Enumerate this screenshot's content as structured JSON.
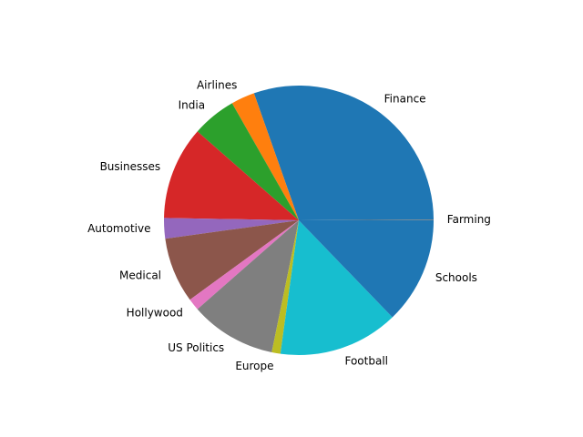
{
  "chart_data": {
    "type": "pie",
    "title": "",
    "start_angle_deg": 0,
    "direction": "counterclockwise",
    "slices": [
      {
        "label": "Farming",
        "value": 0.1,
        "color": "#7f7f7f"
      },
      {
        "label": "Finance",
        "value": 32.0,
        "color": "#1f77b4"
      },
      {
        "label": "Airlines",
        "value": 3.0,
        "color": "#ff7f0e"
      },
      {
        "label": "India",
        "value": 5.6,
        "color": "#2ca02c"
      },
      {
        "label": "Businesses",
        "value": 11.8,
        "color": "#d62728"
      },
      {
        "label": "Automotive",
        "value": 2.6,
        "color": "#9467bd"
      },
      {
        "label": "Medical",
        "value": 8.3,
        "color": "#8c564b"
      },
      {
        "label": "Hollywood",
        "value": 1.5,
        "color": "#e377c2"
      },
      {
        "label": "US Politics",
        "value": 10.9,
        "color": "#7f7f7f"
      },
      {
        "label": "Europe",
        "value": 1.1,
        "color": "#bcbd22"
      },
      {
        "label": "Football",
        "value": 15.2,
        "color": "#17becf"
      },
      {
        "label": "Schools",
        "value": 13.5,
        "color": "#1f77b4"
      }
    ]
  }
}
